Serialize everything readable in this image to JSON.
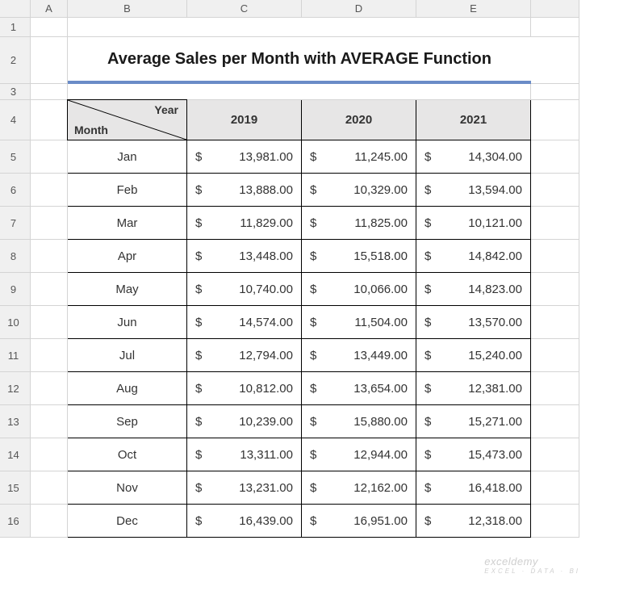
{
  "title": "Average Sales per Month with AVERAGE Function",
  "colors": {
    "title_underline": "#6a8cc7",
    "header_bg": "#e7e6e6",
    "grid_line": "#d4d4d4",
    "table_border": "#000000",
    "sheet_header_bg": "#f0f0f0"
  },
  "column_letters": [
    "A",
    "B",
    "C",
    "D",
    "E"
  ],
  "row_numbers": [
    "1",
    "2",
    "3",
    "4",
    "5",
    "6",
    "7",
    "8",
    "9",
    "10",
    "11",
    "12",
    "13",
    "14",
    "15",
    "16"
  ],
  "header_diagonal": {
    "top": "Year",
    "bottom": "Month"
  },
  "years": [
    "2019",
    "2020",
    "2021"
  ],
  "months": [
    "Jan",
    "Feb",
    "Mar",
    "Apr",
    "May",
    "Jun",
    "Jul",
    "Aug",
    "Sep",
    "Oct",
    "Nov",
    "Dec"
  ],
  "values": [
    [
      "13,981.00",
      "11,245.00",
      "14,304.00"
    ],
    [
      "13,888.00",
      "10,329.00",
      "13,594.00"
    ],
    [
      "11,829.00",
      "11,825.00",
      "10,121.00"
    ],
    [
      "13,448.00",
      "15,518.00",
      "14,842.00"
    ],
    [
      "10,740.00",
      "10,066.00",
      "14,823.00"
    ],
    [
      "14,574.00",
      "11,504.00",
      "13,570.00"
    ],
    [
      "12,794.00",
      "13,449.00",
      "15,240.00"
    ],
    [
      "10,812.00",
      "13,654.00",
      "12,381.00"
    ],
    [
      "10,239.00",
      "15,880.00",
      "15,271.00"
    ],
    [
      "13,311.00",
      "12,944.00",
      "15,473.00"
    ],
    [
      "13,231.00",
      "12,162.00",
      "16,418.00"
    ],
    [
      "16,439.00",
      "16,951.00",
      "12,318.00"
    ]
  ],
  "currency_symbol": "$",
  "watermark": {
    "brand": "exceldemy",
    "tagline": "EXCEL · DATA · BI"
  }
}
